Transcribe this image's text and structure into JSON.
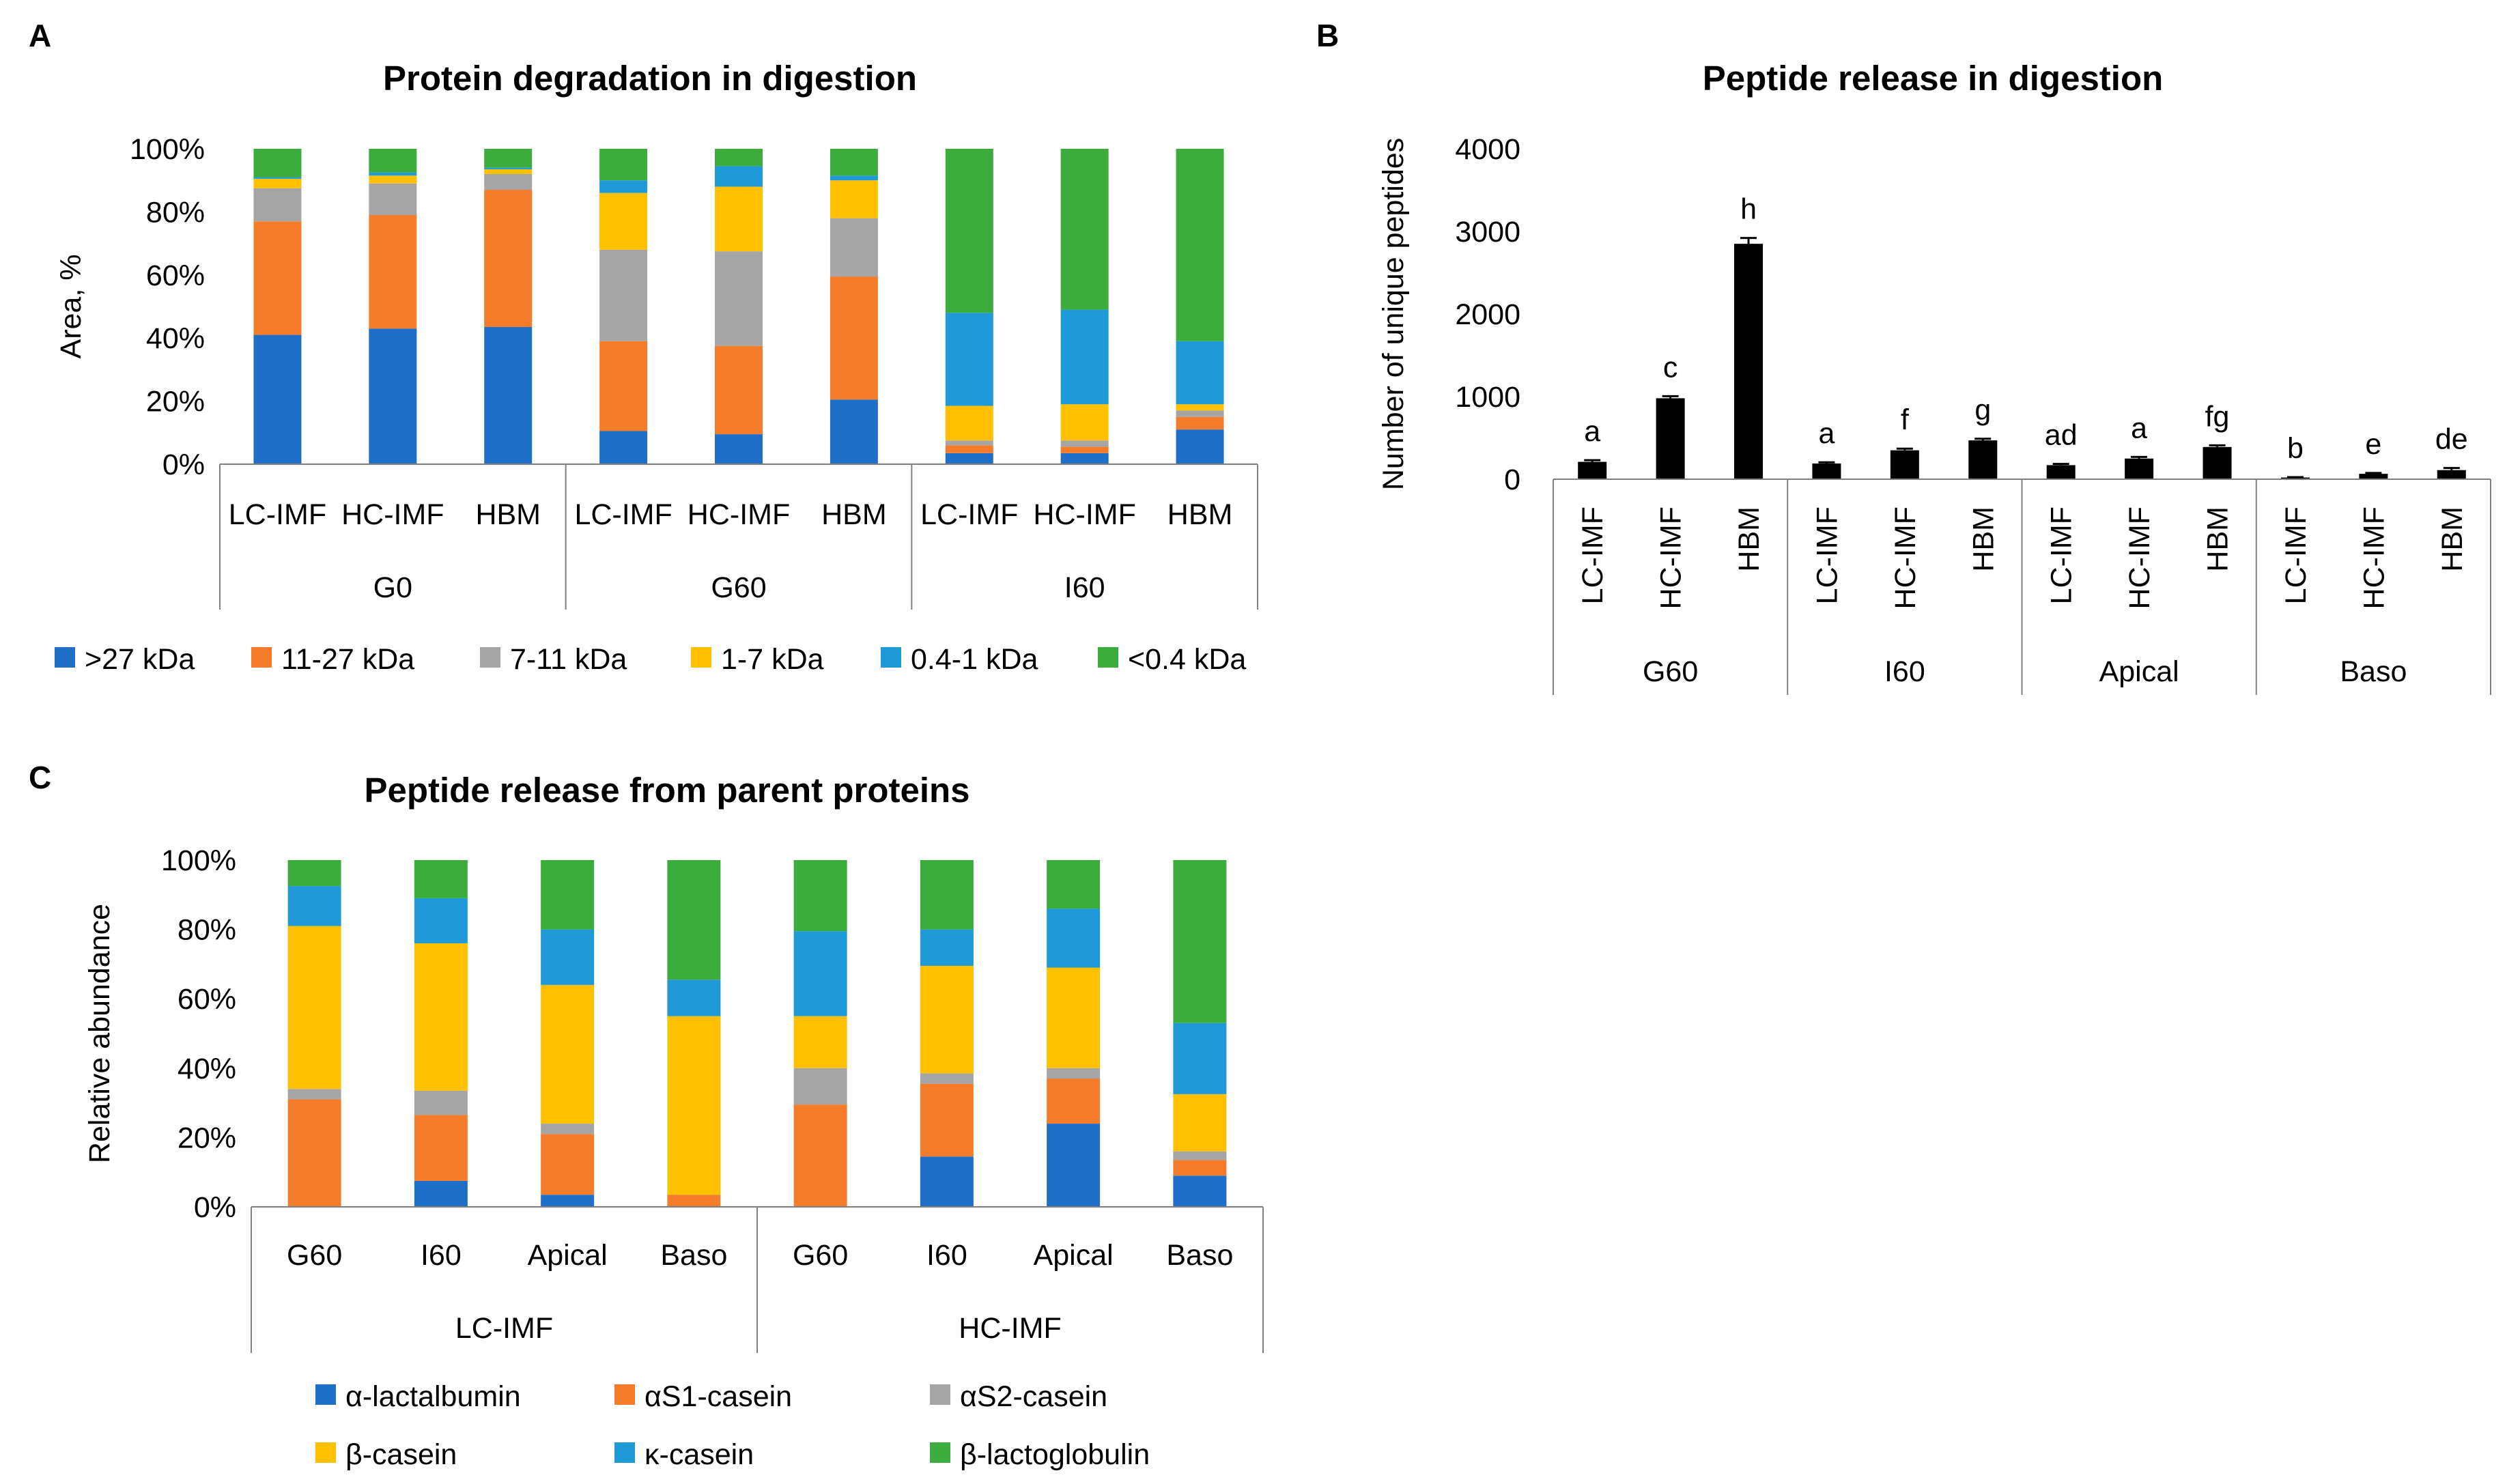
{
  "colors": {
    "c1": "#1f6fc9",
    "c2": "#f47c2a",
    "c3": "#a5a5a5",
    "c4": "#ffc000",
    "c5": "#1f9ad6",
    "c6": "#3cad3c",
    "black": "#000000"
  },
  "chart_data": [
    {
      "panel": "A",
      "type": "bar",
      "stacked": true,
      "title": "Protein degradation in digestion",
      "xlabel": "",
      "ylabel": "Area, %",
      "ylim": [
        0,
        100
      ],
      "yticks": [
        "0%",
        "20%",
        "40%",
        "60%",
        "80%",
        "100%"
      ],
      "categories": [
        "LC-IMF",
        "HC-IMF",
        "HBM",
        "LC-IMF",
        "HC-IMF",
        "HBM",
        "LC-IMF",
        "HC-IMF",
        "HBM"
      ],
      "groups": [
        "G0",
        "G60",
        "I60"
      ],
      "legend_position": "bottom",
      "series": [
        {
          "name": ">27 kDa",
          "color_key": "c1",
          "values": [
            41,
            43,
            43.5,
            10.5,
            9.5,
            20.5,
            3.5,
            3.5,
            11
          ]
        },
        {
          "name": "11-27 kDa",
          "color_key": "c2",
          "values": [
            36,
            36,
            43.5,
            28.5,
            28,
            39,
            2.5,
            2,
            4
          ]
        },
        {
          "name": "7-11 kDa",
          "color_key": "c3",
          "values": [
            10.5,
            10,
            5,
            29,
            30,
            18.5,
            1.5,
            2,
            2
          ]
        },
        {
          "name": "1-7 kDa",
          "color_key": "c4",
          "values": [
            3,
            2.5,
            1.5,
            18,
            20.5,
            12,
            11,
            11.5,
            2
          ]
        },
        {
          "name": "0.4-1 kDa",
          "color_key": "c5",
          "values": [
            0.5,
            1,
            0.5,
            4,
            6.5,
            1.5,
            29.5,
            30,
            20
          ]
        },
        {
          "name": "<0.4 kDa",
          "color_key": "c6",
          "values": [
            9,
            7.5,
            6,
            10,
            5.5,
            8.5,
            52,
            51,
            61
          ]
        }
      ]
    },
    {
      "panel": "B",
      "type": "bar",
      "title": "Peptide release in digestion",
      "xlabel": "",
      "ylabel": "Number of unique peptides",
      "ylim": [
        0,
        4000
      ],
      "yticks": [
        "0",
        "1000",
        "2000",
        "3000",
        "4000"
      ],
      "categories": [
        "LC-IMF",
        "HC-IMF",
        "HBM",
        "LC-IMF",
        "HC-IMF",
        "HBM",
        "LC-IMF",
        "HC-IMF",
        "HBM",
        "LC-IMF",
        "HC-IMF",
        "HBM"
      ],
      "groups": [
        "G60",
        "I60",
        "Apical",
        "Baso"
      ],
      "values": [
        210,
        980,
        2850,
        190,
        350,
        470,
        170,
        250,
        390,
        20,
        65,
        110
      ],
      "errors": [
        20,
        25,
        70,
        15,
        20,
        20,
        15,
        20,
        20,
        5,
        10,
        25
      ],
      "annotations": [
        "a",
        "c",
        "h",
        "a",
        "f",
        "g",
        "ad",
        "a",
        "fg",
        "b",
        "e",
        "de"
      ]
    },
    {
      "panel": "C",
      "type": "bar",
      "stacked": true,
      "title": "Peptide release from parent proteins",
      "xlabel": "",
      "ylabel": "Relative abundance",
      "ylim": [
        0,
        100
      ],
      "yticks": [
        "0%",
        "20%",
        "40%",
        "60%",
        "80%",
        "100%"
      ],
      "categories": [
        "G60",
        "I60",
        "Apical",
        "Baso",
        "G60",
        "I60",
        "Apical",
        "Baso"
      ],
      "groups": [
        "LC-IMF",
        "HC-IMF"
      ],
      "legend_position": "bottom",
      "series": [
        {
          "name": "α-lactalbumin",
          "color_key": "c1",
          "values": [
            0,
            7.5,
            3.5,
            0,
            0,
            14.5,
            24,
            9
          ]
        },
        {
          "name": "αS1-casein",
          "color_key": "c2",
          "values": [
            31,
            19,
            17.5,
            3.5,
            29.5,
            21,
            13,
            4.5
          ]
        },
        {
          "name": "αS2-casein",
          "color_key": "c3",
          "values": [
            3,
            7,
            3,
            0,
            10.5,
            3,
            3,
            2.5
          ]
        },
        {
          "name": "β-casein",
          "color_key": "c4",
          "values": [
            47,
            42.5,
            40,
            51.5,
            15,
            31,
            29,
            16.5
          ]
        },
        {
          "name": "κ-casein",
          "color_key": "c5",
          "values": [
            11.5,
            13,
            16,
            10.5,
            24.5,
            10.5,
            17,
            20.5
          ]
        },
        {
          "name": "β-lactoglobulin",
          "color_key": "c6",
          "values": [
            7.5,
            11,
            20,
            34.5,
            20.5,
            20,
            14,
            47
          ]
        }
      ]
    }
  ]
}
